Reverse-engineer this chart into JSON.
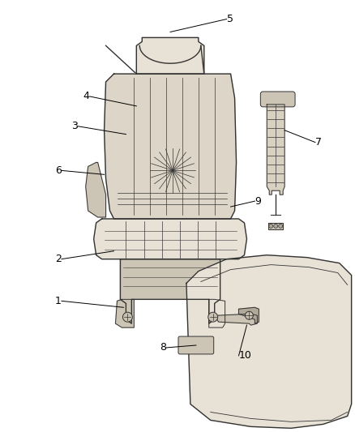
{
  "background_color": "#ffffff",
  "line_color": "#333333",
  "label_color": "#000000",
  "fig_width": 4.38,
  "fig_height": 5.33,
  "dpi": 100,
  "seat_fill": "#e8e2d6",
  "seat_fill2": "#ddd6c8",
  "base_fill": "#ccc5b5",
  "rail_fill": "#d8d0c0",
  "lower_fill": "#e8e2d6"
}
